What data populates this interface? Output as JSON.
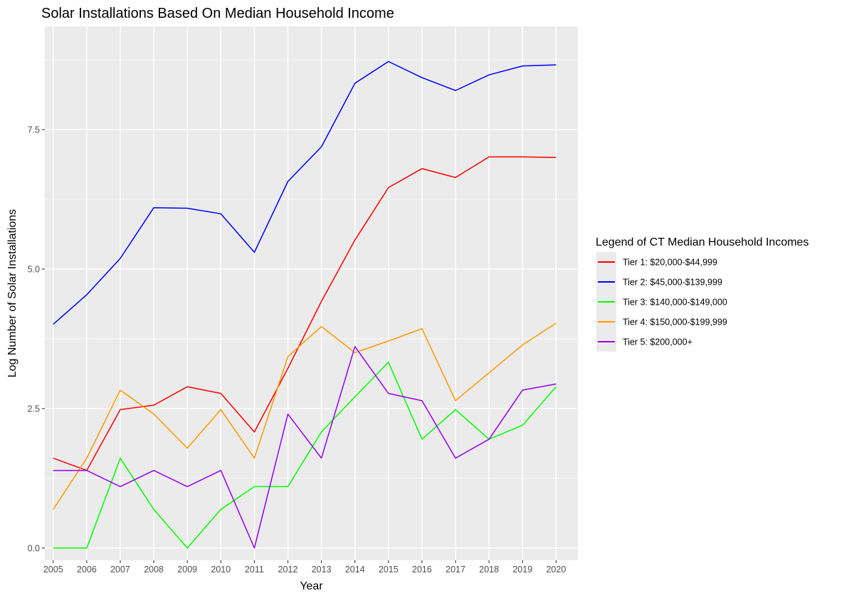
{
  "chart_data": {
    "type": "line",
    "title": "Solar Installations Based On Median Household Income",
    "xlabel": "Year",
    "ylabel": "Log Number of Solar Installations",
    "x": [
      2005,
      2006,
      2007,
      2008,
      2009,
      2010,
      2011,
      2012,
      2013,
      2014,
      2015,
      2016,
      2017,
      2018,
      2019,
      2020
    ],
    "xlim": [
      2004.75,
      2020.65
    ],
    "ylim": [
      -0.22,
      9.35
    ],
    "yticks": [
      0.0,
      2.5,
      5.0,
      7.5
    ],
    "ytick_labels": [
      "0.0",
      "2.5",
      "5.0",
      "7.5"
    ],
    "xtick_labels": [
      "2005",
      "2006",
      "2007",
      "2008",
      "2009",
      "2010",
      "2011",
      "2012",
      "2013",
      "2014",
      "2015",
      "2016",
      "2017",
      "2018",
      "2019",
      "2020"
    ],
    "grid": true,
    "legend_title": "Legend of CT Median Household Incomes",
    "legend_position": "right",
    "series": [
      {
        "name": "Tier 1: $20,000-$44,999",
        "color": "#ff0000",
        "values": [
          1.61,
          1.39,
          2.48,
          2.56,
          2.89,
          2.77,
          2.08,
          3.22,
          4.42,
          5.52,
          6.46,
          6.8,
          6.64,
          7.01,
          7.01,
          7.0
        ]
      },
      {
        "name": "Tier 2: $45,000-$139,999",
        "color": "#0000ff",
        "values": [
          4.01,
          4.54,
          5.19,
          6.1,
          6.09,
          5.99,
          5.3,
          6.57,
          7.19,
          8.33,
          8.72,
          8.43,
          8.2,
          8.48,
          8.64,
          8.66
        ]
      },
      {
        "name": "Tier 3: $140,000-$149,000",
        "color": "#00ff00",
        "values": [
          0.0,
          0.0,
          1.61,
          0.69,
          0.0,
          0.69,
          1.1,
          1.1,
          2.08,
          2.71,
          3.33,
          1.95,
          2.48,
          1.95,
          2.2,
          2.89
        ]
      },
      {
        "name": "Tier 4: $150,000-$199,999",
        "color": "#ff9900",
        "values": [
          0.69,
          1.61,
          2.83,
          2.4,
          1.79,
          2.48,
          1.61,
          3.43,
          3.97,
          3.5,
          3.71,
          3.93,
          2.64,
          3.14,
          3.64,
          4.03
        ]
      },
      {
        "name": "Tier 5: $200,000+",
        "color": "#9900ee",
        "values": [
          1.39,
          1.39,
          1.1,
          1.39,
          1.1,
          1.39,
          0.0,
          2.4,
          1.61,
          3.61,
          2.77,
          2.64,
          1.61,
          1.95,
          2.83,
          2.94
        ]
      }
    ]
  }
}
